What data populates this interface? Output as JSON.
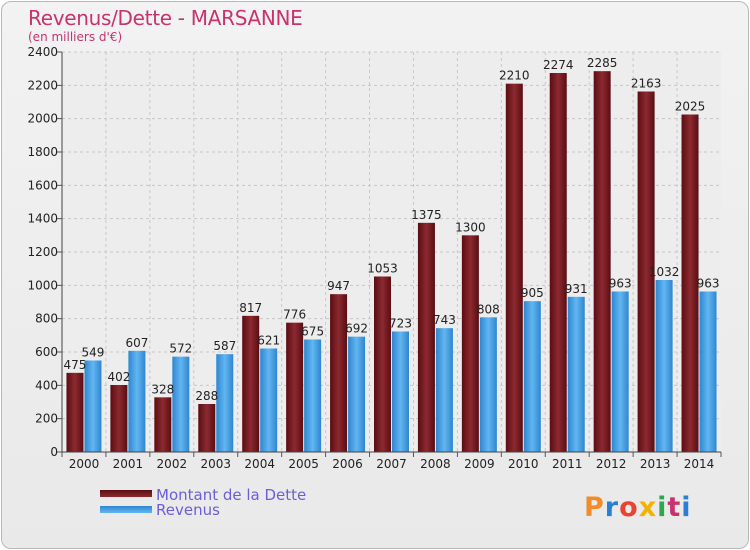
{
  "header": {
    "title": "Revenus/Dette - MARSANNE",
    "subtitle": "(en milliers d'€)"
  },
  "logo": {
    "text": "Proxiti",
    "colors": [
      "#f28c28",
      "#2a7fd4",
      "#e8442f",
      "#f2b400",
      "#2aa84a",
      "#c8336e",
      "#2a7fd4"
    ]
  },
  "colors": {
    "dette": "#7a1e22",
    "revenus": "#4aa3e6",
    "title": "#c8336e",
    "legend_text": "#6a5fd8"
  },
  "chart_data": {
    "type": "bar",
    "title": "Revenus/Dette - MARSANNE",
    "subtitle": "(en milliers d'€)",
    "categories": [
      "2000",
      "2001",
      "2002",
      "2003",
      "2004",
      "2005",
      "2006",
      "2007",
      "2008",
      "2009",
      "2010",
      "2011",
      "2012",
      "2013",
      "2014"
    ],
    "series": [
      {
        "name": "Montant de la Dette",
        "values": [
          475,
          402,
          328,
          288,
          817,
          776,
          947,
          1053,
          1375,
          1300,
          2210,
          2274,
          2285,
          2163,
          2025
        ]
      },
      {
        "name": "Revenus",
        "values": [
          549,
          607,
          572,
          587,
          621,
          675,
          692,
          723,
          743,
          808,
          905,
          931,
          963,
          1032,
          963
        ]
      }
    ],
    "ylim": [
      0,
      2400
    ],
    "yticks": [
      0,
      200,
      400,
      600,
      800,
      1000,
      1200,
      1400,
      1600,
      1800,
      2000,
      2200,
      2400
    ],
    "grid": true,
    "legend_position": "bottom-left"
  }
}
